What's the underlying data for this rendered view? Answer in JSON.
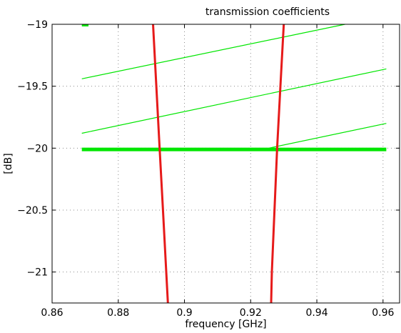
{
  "chart_data": {
    "type": "line",
    "title": "transmission coefficients",
    "xlabel": "frequency [GHz]",
    "ylabel": "[dB]",
    "xlim": [
      0.86,
      0.965
    ],
    "ylim": [
      -21.25,
      -19
    ],
    "xticks": [
      0.86,
      0.88,
      0.9,
      0.92,
      0.94,
      0.96
    ],
    "xtick_labels": [
      "0.86",
      "0.88",
      "0.9",
      "0.92",
      "0.94",
      "0.96"
    ],
    "yticks": [
      -19,
      -19.5,
      -20,
      -20.5,
      -21
    ],
    "ytick_labels": [
      "−19",
      "−19.5",
      "−20",
      "−20.5",
      "−21"
    ],
    "grid": true,
    "series": [
      {
        "color": "#00e600",
        "width": 1.2,
        "x": [
          0.869,
          0.9485
        ],
        "y": [
          -19.44,
          -19.0
        ]
      },
      {
        "color": "#00e600",
        "width": 1.2,
        "x": [
          0.869,
          0.961
        ],
        "y": [
          -19.88,
          -19.36
        ]
      },
      {
        "color": "#00e600",
        "width": 1.2,
        "x": [
          0.9255,
          0.961
        ],
        "y": [
          -20.0,
          -19.8
        ]
      },
      {
        "color": "#00e600",
        "width": 5,
        "x": [
          0.869,
          0.961
        ],
        "y": [
          -20.01,
          -20.01
        ]
      },
      {
        "color": "#e61a1a",
        "width": 3,
        "x": [
          0.8905,
          0.8915,
          0.8925,
          0.8935,
          0.8945,
          0.895
        ],
        "y": [
          -19.0,
          -19.5,
          -20.0,
          -20.5,
          -21.0,
          -21.25
        ]
      },
      {
        "color": "#e61a1a",
        "width": 3,
        "x": [
          0.93,
          0.929,
          0.928,
          0.9272,
          0.9264,
          0.9262
        ],
        "y": [
          -19.0,
          -19.5,
          -20.0,
          -20.5,
          -21.0,
          -21.25
        ]
      },
      {
        "color": "#00e600",
        "width": 2.5,
        "x": [
          0.869,
          0.871
        ],
        "y": [
          -19.01,
          -19.01
        ]
      }
    ]
  }
}
